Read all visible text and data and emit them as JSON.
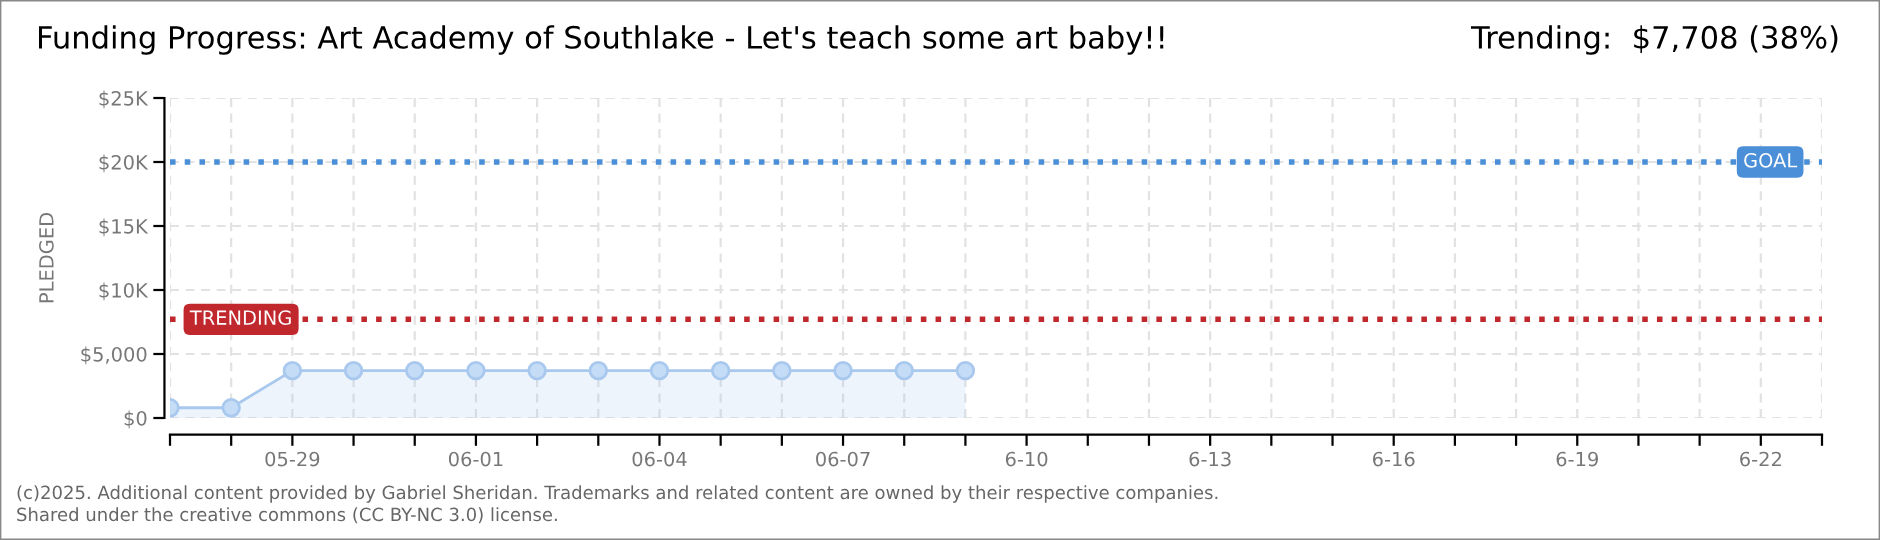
{
  "chart_data": {
    "type": "area",
    "title": "Funding Progress: Art Academy of Southlake - Let's teach some art baby!!",
    "subtitle": "Trending:  $7,708 (38%)",
    "ylabel": "PLEDGED",
    "x": [
      "2025-05-27",
      "2025-05-28",
      "2025-05-29",
      "2025-05-30",
      "2025-05-31",
      "2025-06-01",
      "2025-06-02",
      "2025-06-03",
      "2025-06-04",
      "2025-06-05",
      "2025-06-06",
      "2025-06-07",
      "2025-06-08",
      "2025-06-09"
    ],
    "series": [
      {
        "color": "#a9c8ee",
        "values": [
          800,
          800,
          3700,
          3700,
          3700,
          3700,
          3700,
          3700,
          3700,
          3700,
          3700,
          3700,
          3700,
          3700
        ]
      }
    ],
    "marker": "circle",
    "line_style": "solid",
    "grid": true,
    "legend": false,
    "xlim": [
      "2025-05-27",
      "2025-06-23"
    ],
    "xticks": [
      {
        "value": "2025-05-27",
        "label": null
      },
      {
        "value": "2025-05-28",
        "label": null
      },
      {
        "value": "2025-05-29",
        "label": "05-29"
      },
      {
        "value": "2025-05-30",
        "label": null
      },
      {
        "value": "2025-05-31",
        "label": null
      },
      {
        "value": "2025-06-01",
        "label": "06-01"
      },
      {
        "value": "2025-06-02",
        "label": null
      },
      {
        "value": "2025-06-03",
        "label": null
      },
      {
        "value": "2025-06-04",
        "label": "06-04"
      },
      {
        "value": "2025-06-05",
        "label": null
      },
      {
        "value": "2025-06-06",
        "label": null
      },
      {
        "value": "2025-06-07",
        "label": "06-07"
      },
      {
        "value": "2025-06-08",
        "label": null
      },
      {
        "value": "2025-06-09",
        "label": null
      },
      {
        "value": "2025-06-10",
        "label": "6-10"
      },
      {
        "value": "2025-06-11",
        "label": null
      },
      {
        "value": "2025-06-12",
        "label": null
      },
      {
        "value": "2025-06-13",
        "label": "6-13"
      },
      {
        "value": "2025-06-14",
        "label": null
      },
      {
        "value": "2025-06-15",
        "label": null
      },
      {
        "value": "2025-06-16",
        "label": "6-16"
      },
      {
        "value": "2025-06-17",
        "label": null
      },
      {
        "value": "2025-06-18",
        "label": null
      },
      {
        "value": "2025-06-19",
        "label": "6-19"
      },
      {
        "value": "2025-06-20",
        "label": null
      },
      {
        "value": "2025-06-21",
        "label": null
      },
      {
        "value": "2025-06-22",
        "label": "6-22"
      },
      {
        "value": "2025-06-23",
        "label": null
      }
    ],
    "ylim": [
      0,
      25000
    ],
    "yticks": [
      {
        "value": 0,
        "label": "$0"
      },
      {
        "value": 5000,
        "label": "$5,000"
      },
      {
        "value": 10000,
        "label": "$10K"
      },
      {
        "value": 15000,
        "label": "$15K"
      },
      {
        "value": 20000,
        "label": "$20K"
      },
      {
        "value": 25000,
        "label": "$25K"
      }
    ],
    "ref_lines": [
      {
        "axis": "y",
        "value": 20000,
        "label": "GOAL",
        "color": "#4a8fd8",
        "line_style": "dotted"
      },
      {
        "axis": "y",
        "value": 7708,
        "label": "TRENDING",
        "color": "#c0282d",
        "line_style": "dotted"
      }
    ],
    "annotations": [
      "(c)2025. Additional content provided by Gabriel Sheridan. Trademarks and related content are owned by their respective companies.",
      "Shared under the creative commons (CC BY-NC 3.0) license."
    ]
  }
}
